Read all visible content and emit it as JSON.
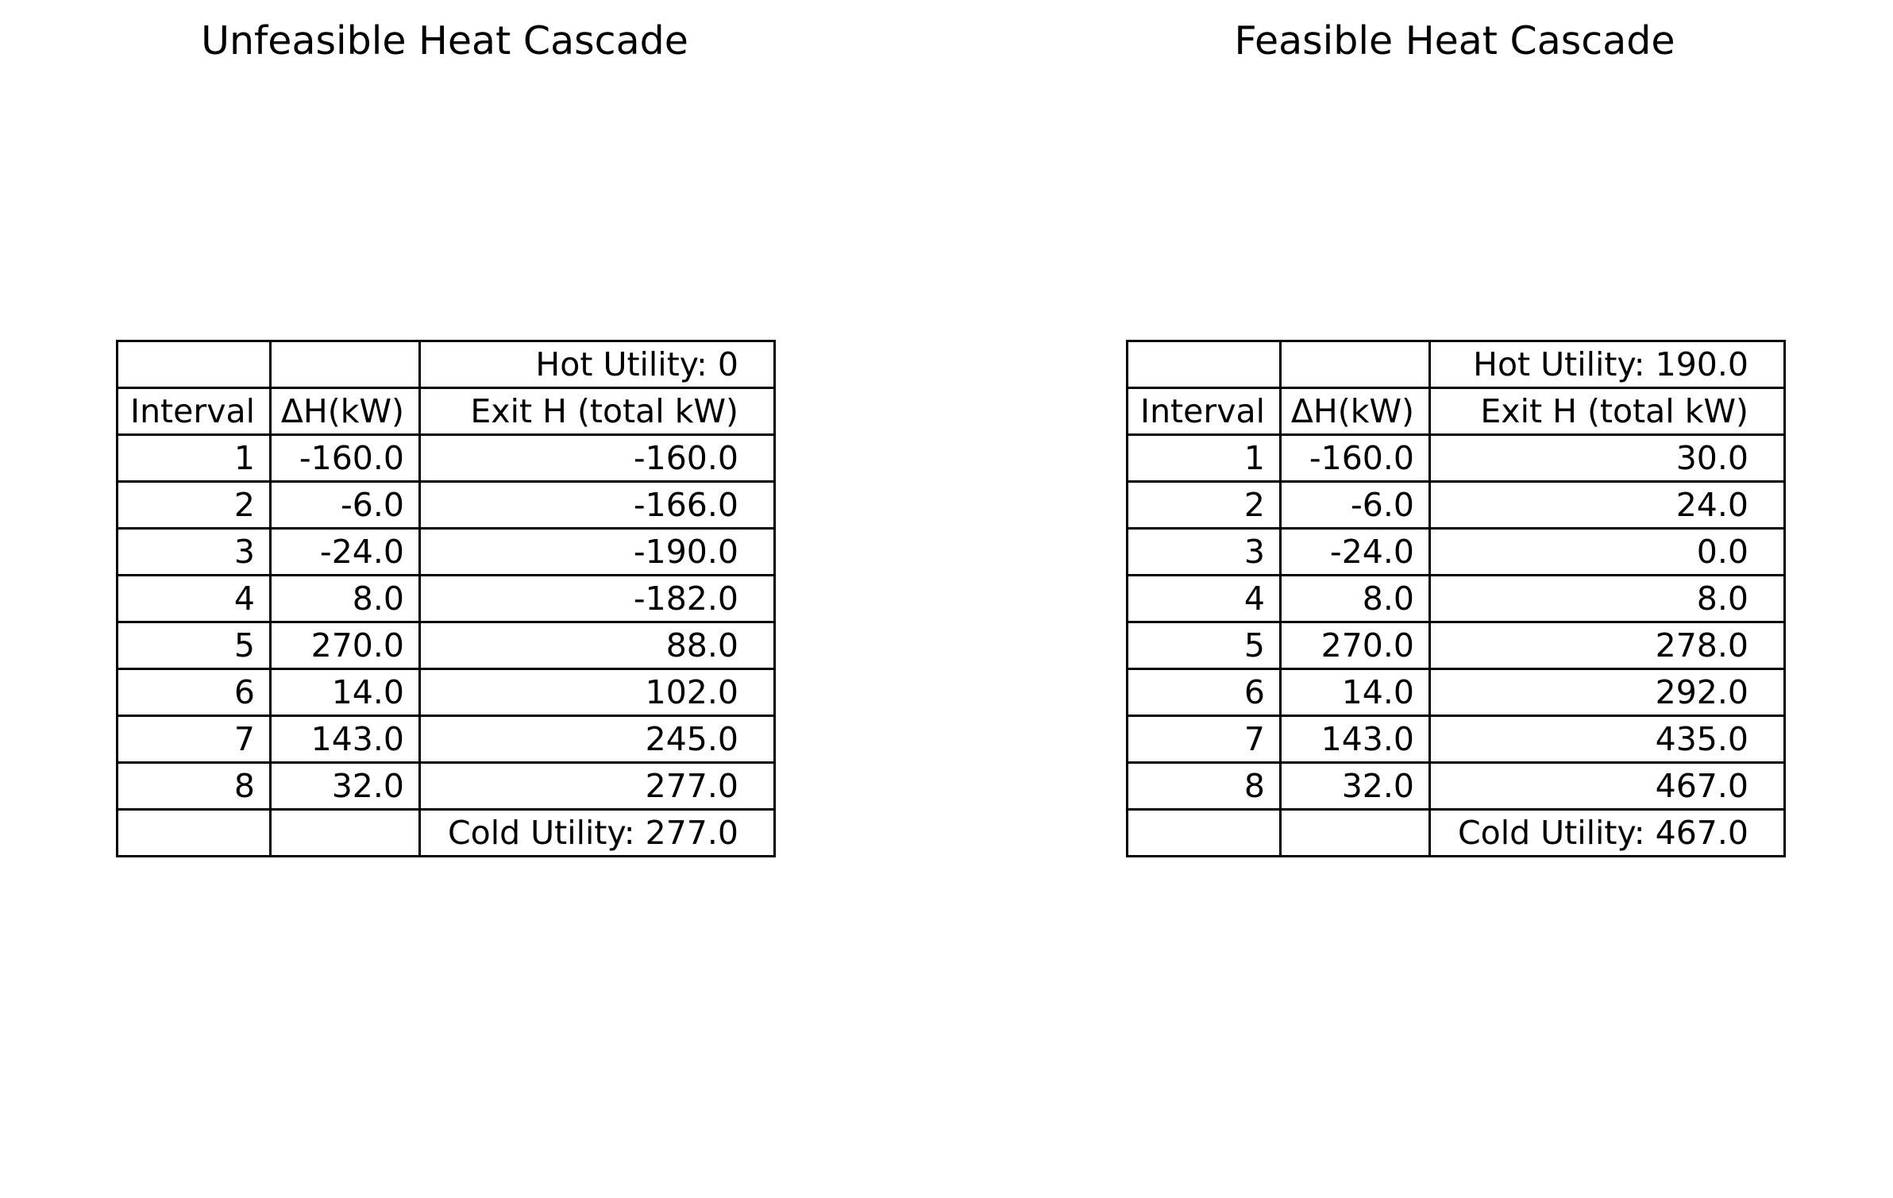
{
  "chart_data": [
    {
      "type": "table",
      "title": "Unfeasible Heat Cascade",
      "hot_utility_label": "Hot Utility: 0",
      "columns": [
        "Interval",
        "ΔH(kW)",
        "Exit H (total kW)"
      ],
      "rows": [
        {
          "interval": "1",
          "dh": "-160.0",
          "exit_h": "-160.0"
        },
        {
          "interval": "2",
          "dh": "-6.0",
          "exit_h": "-166.0"
        },
        {
          "interval": "3",
          "dh": "-24.0",
          "exit_h": "-190.0"
        },
        {
          "interval": "4",
          "dh": "8.0",
          "exit_h": "-182.0"
        },
        {
          "interval": "5",
          "dh": "270.0",
          "exit_h": "88.0"
        },
        {
          "interval": "6",
          "dh": "14.0",
          "exit_h": "102.0"
        },
        {
          "interval": "7",
          "dh": "143.0",
          "exit_h": "245.0"
        },
        {
          "interval": "8",
          "dh": "32.0",
          "exit_h": "277.0"
        }
      ],
      "cold_utility_label": "Cold Utility: 277.0"
    },
    {
      "type": "table",
      "title": "Feasible Heat Cascade",
      "hot_utility_label": "Hot Utility: 190.0",
      "columns": [
        "Interval",
        "ΔH(kW)",
        "Exit H (total kW)"
      ],
      "rows": [
        {
          "interval": "1",
          "dh": "-160.0",
          "exit_h": "30.0"
        },
        {
          "interval": "2",
          "dh": "-6.0",
          "exit_h": "24.0"
        },
        {
          "interval": "3",
          "dh": "-24.0",
          "exit_h": "0.0"
        },
        {
          "interval": "4",
          "dh": "8.0",
          "exit_h": "8.0"
        },
        {
          "interval": "5",
          "dh": "270.0",
          "exit_h": "278.0"
        },
        {
          "interval": "6",
          "dh": "14.0",
          "exit_h": "292.0"
        },
        {
          "interval": "7",
          "dh": "143.0",
          "exit_h": "435.0"
        },
        {
          "interval": "8",
          "dh": "32.0",
          "exit_h": "467.0"
        }
      ],
      "cold_utility_label": "Cold Utility: 467.0"
    }
  ]
}
